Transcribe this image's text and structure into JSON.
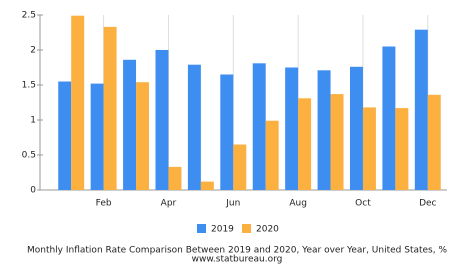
{
  "chart_data": {
    "type": "bar",
    "title": "Monthly Inflation Rate Comparison Between 2019 and 2020, Year over Year, United States, %",
    "subtitle": "www.statbureau.org",
    "categories": [
      null,
      "Feb",
      null,
      "Apr",
      null,
      "Jun",
      null,
      "Aug",
      null,
      "Oct",
      null,
      "Dec"
    ],
    "series": [
      {
        "name": "2019",
        "color": "#3d8ef0",
        "values": [
          1.55,
          1.52,
          1.86,
          2.0,
          1.79,
          1.65,
          1.81,
          1.75,
          1.71,
          1.76,
          2.05,
          2.29
        ]
      },
      {
        "name": "2020",
        "color": "#fbb040",
        "values": [
          2.49,
          2.33,
          1.54,
          0.33,
          0.12,
          0.65,
          0.99,
          1.31,
          1.37,
          1.18,
          1.17,
          1.36
        ]
      }
    ],
    "ylim": [
      0,
      2.5
    ],
    "yticks": [
      0,
      0.5,
      1,
      1.5,
      2,
      2.5
    ],
    "grid": true,
    "legend": "bottom"
  }
}
